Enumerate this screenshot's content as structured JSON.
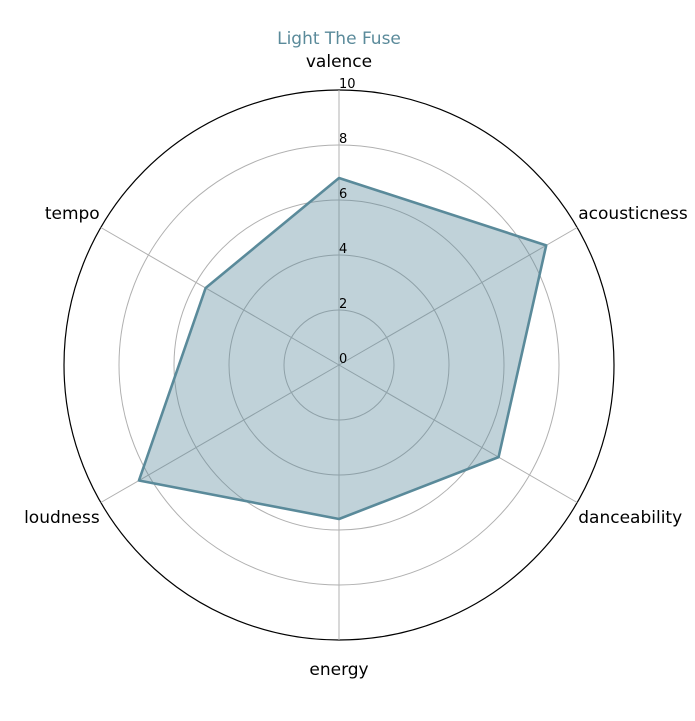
{
  "chart_data": {
    "type": "radar",
    "title": "Light The Fuse",
    "axes": [
      "valence",
      "acousticness",
      "danceability",
      "energy",
      "loudness",
      "tempo"
    ],
    "series": [
      {
        "values": [
          6.8,
          8.7,
          6.7,
          5.6,
          8.4,
          5.6
        ]
      }
    ],
    "r_ticks": [
      "0",
      "2",
      "4",
      "6",
      "8",
      "10"
    ],
    "r_tick_values": [
      0,
      2,
      4,
      6,
      8,
      10
    ],
    "rlim": [
      0,
      10
    ],
    "grid": true,
    "colors": {
      "title": "#5a8a9a",
      "series_line": "#5a8a9a",
      "series_fill": "#5a8a9a",
      "grid": "#b0b0b0",
      "outer_ring": "#000000"
    }
  }
}
